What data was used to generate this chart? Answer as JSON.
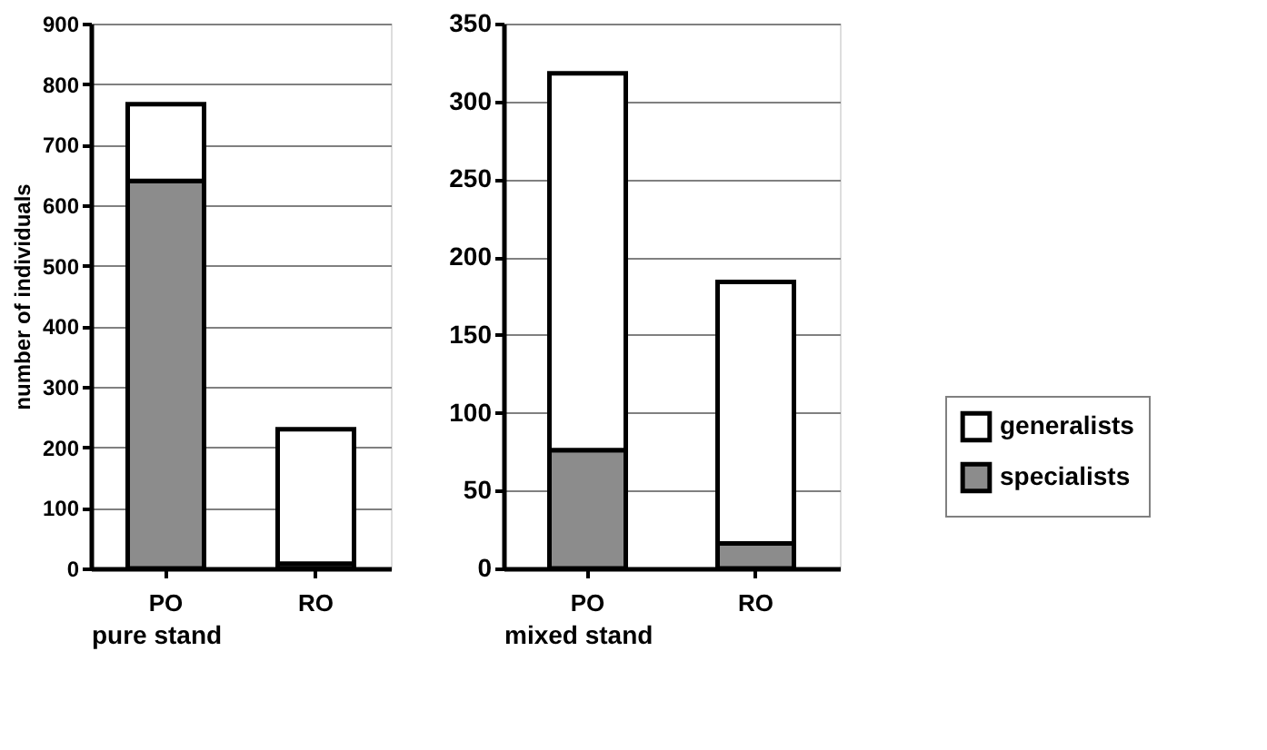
{
  "chart_data": [
    {
      "type": "bar",
      "stacked": true,
      "categories": [
        "PO",
        "RO"
      ],
      "xlabel": "pure stand",
      "ylabel": "number of individuals",
      "ylim": [
        0,
        900
      ],
      "yticks": [
        0,
        100,
        200,
        300,
        400,
        500,
        600,
        700,
        800,
        900
      ],
      "grid": "y",
      "legend": "right",
      "series": [
        {
          "name": "specialists",
          "color": "#8c8c8c",
          "values": [
            640,
            8
          ]
        },
        {
          "name": "generalists",
          "color": "#ffffff",
          "values": [
            127,
            222
          ]
        }
      ]
    },
    {
      "type": "bar",
      "stacked": true,
      "categories": [
        "PO",
        "RO"
      ],
      "xlabel": "mixed stand",
      "ylim": [
        0,
        350
      ],
      "yticks": [
        0,
        50,
        100,
        150,
        200,
        250,
        300,
        350
      ],
      "grid": "y",
      "legend": "right",
      "series": [
        {
          "name": "specialists",
          "color": "#8c8c8c",
          "values": [
            76,
            16
          ]
        },
        {
          "name": "generalists",
          "color": "#ffffff",
          "values": [
            242,
            168
          ]
        }
      ]
    }
  ]
}
